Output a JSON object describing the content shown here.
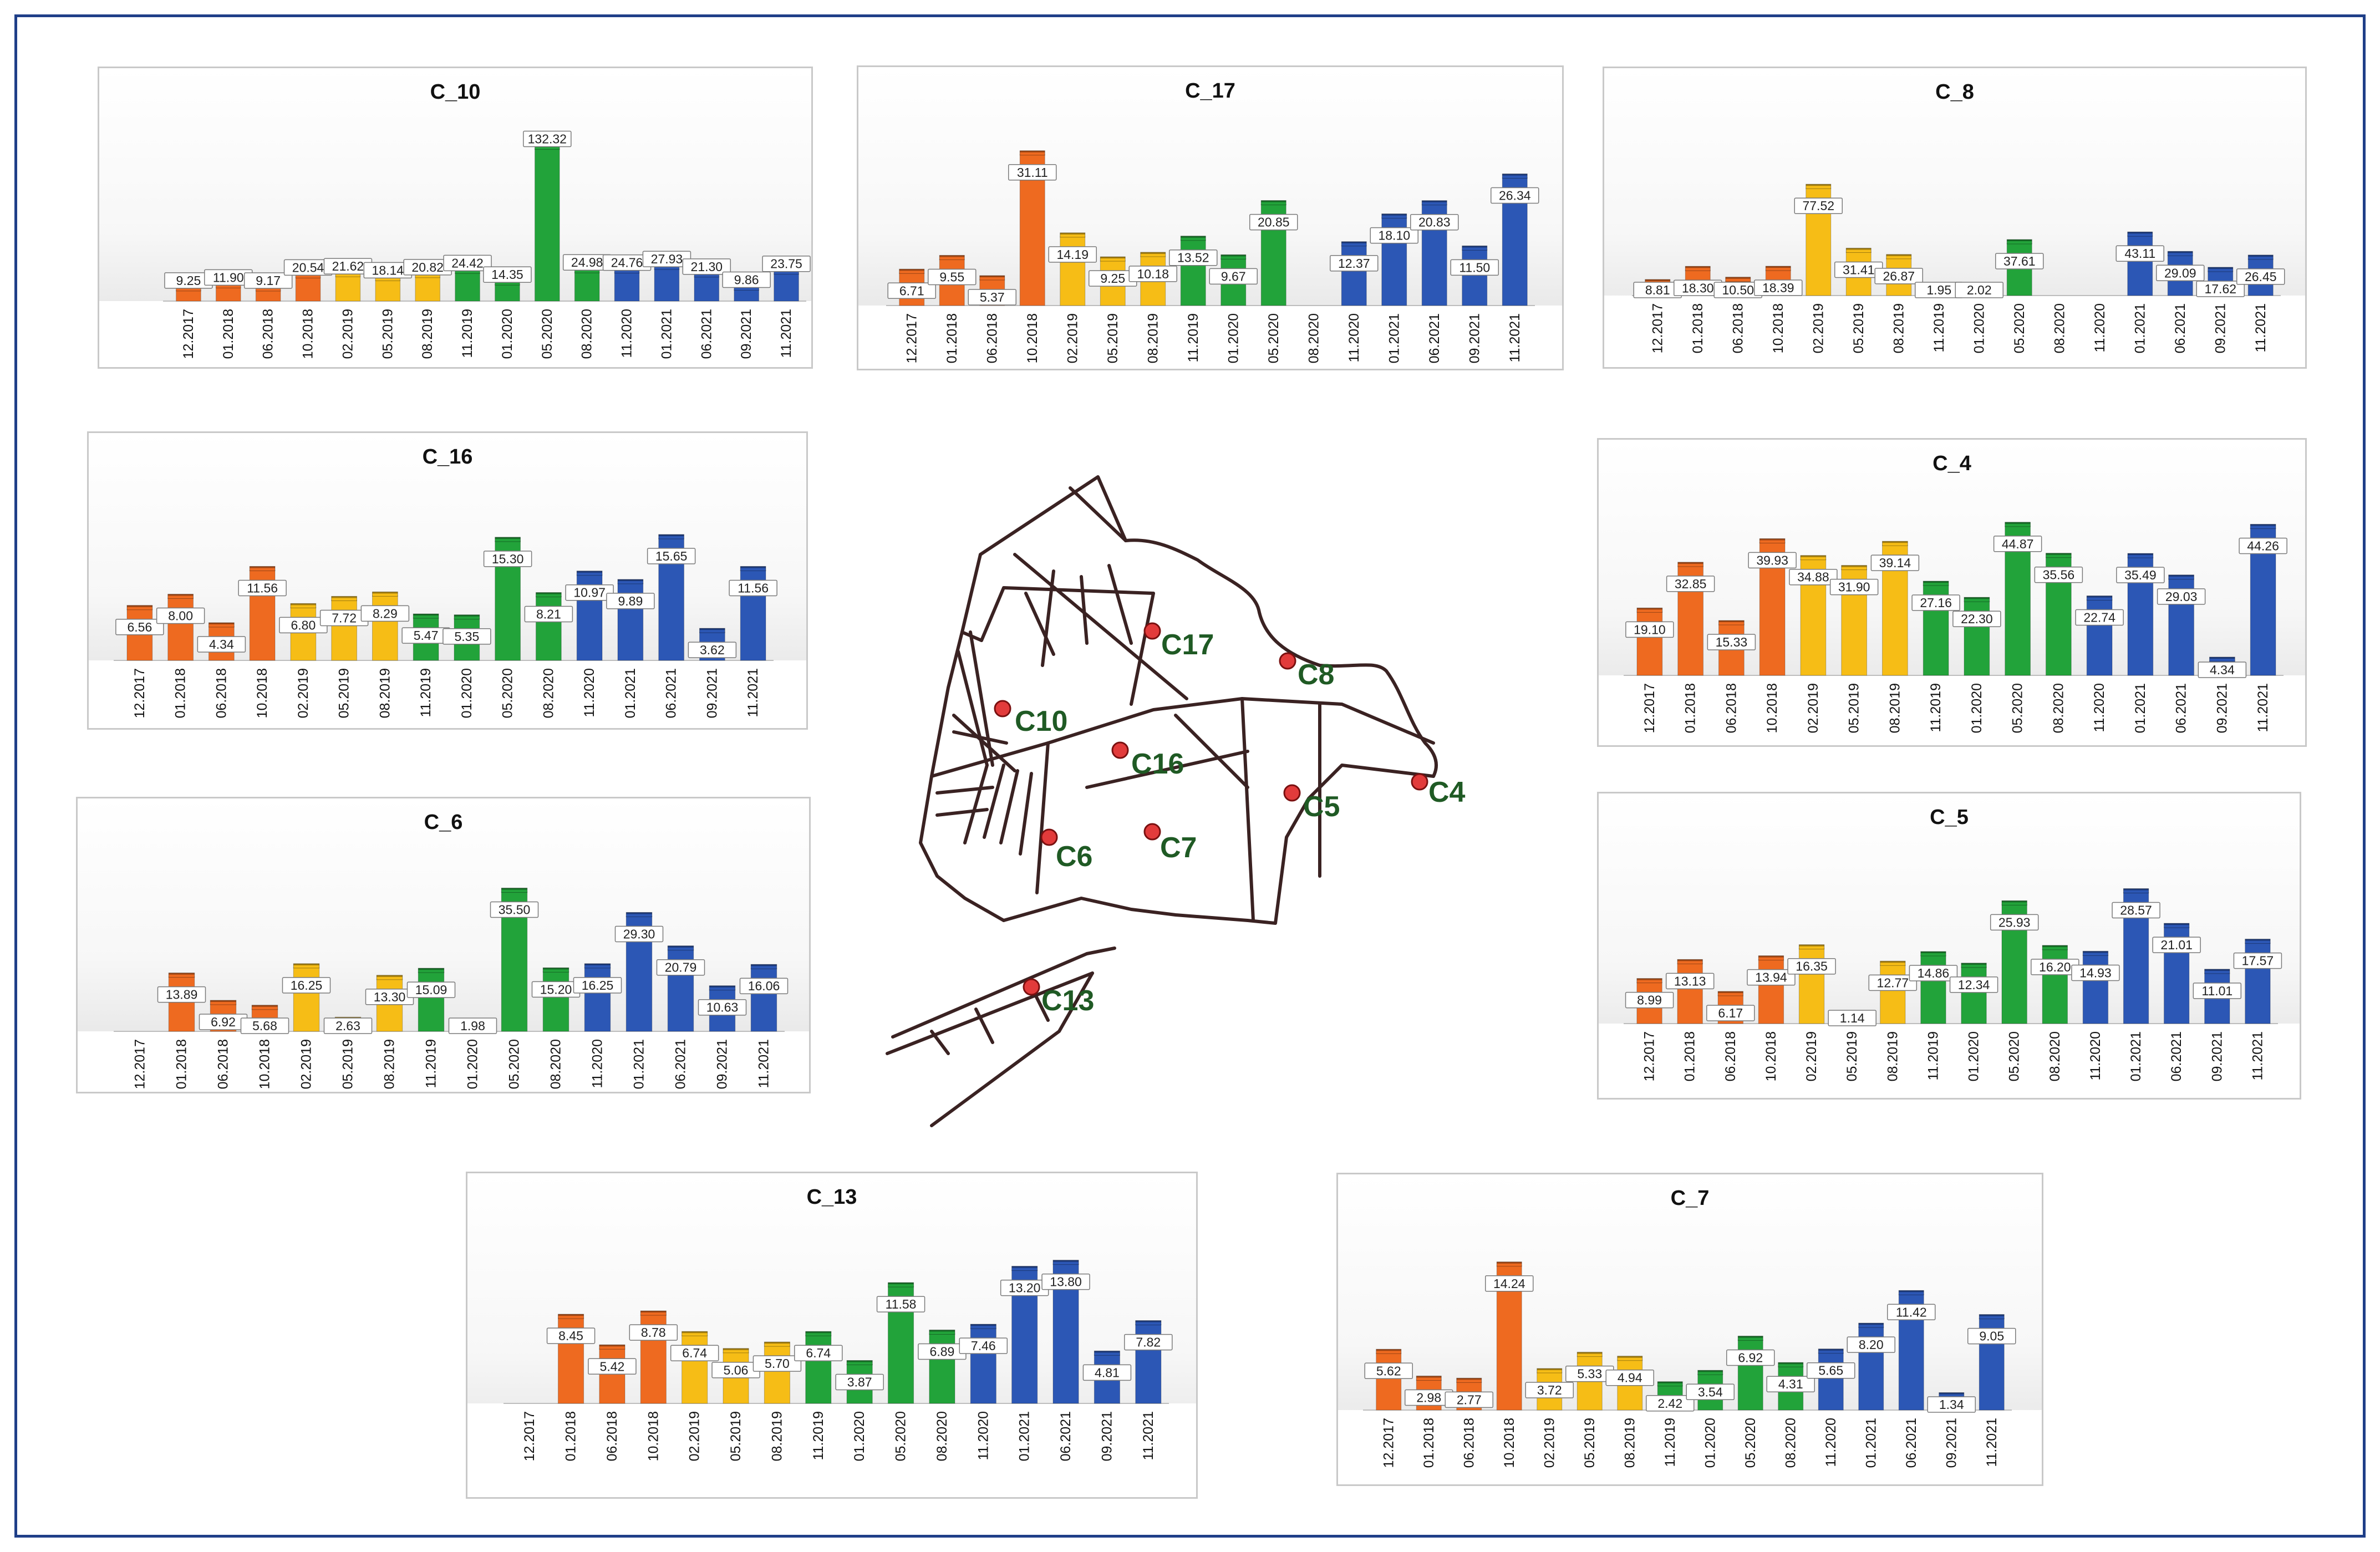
{
  "colors": {
    "orange": "#ee6a20",
    "yellow": "#f6bd16",
    "green": "#22a33a",
    "blue": "#2c57b5",
    "frame": "#1f3f88"
  },
  "map": {
    "stations": [
      {
        "label": "C17"
      },
      {
        "label": "C8"
      },
      {
        "label": "C10"
      },
      {
        "label": "C16"
      },
      {
        "label": "C5"
      },
      {
        "label": "C4"
      },
      {
        "label": "C6"
      },
      {
        "label": "C7"
      },
      {
        "label": "C13"
      }
    ]
  },
  "chart_data": [
    {
      "type": "bar",
      "title": "C_10",
      "ylim": [
        0,
        135
      ],
      "categories": [
        "12.2017",
        "01.2018",
        "06.2018",
        "10.2018",
        "02.2019",
        "05.2019",
        "08.2019",
        "11.2019",
        "01.2020",
        "05.2020",
        "08.2020",
        "11.2020",
        "01.2021",
        "06.2021",
        "09.2021",
        "11.2021"
      ],
      "values": [
        9.25,
        11.9,
        9.17,
        20.54,
        21.62,
        18.14,
        20.82,
        24.42,
        14.35,
        132.32,
        24.98,
        24.76,
        27.93,
        21.3,
        9.86,
        23.75
      ],
      "labels": [
        "9.25",
        "11.90",
        "9.17",
        "20.54",
        "21.62",
        "18.14",
        "20.82",
        "24.42",
        "14.35",
        "132.32",
        "24.98",
        "24.76",
        "27.93",
        "21.30",
        "9.86",
        "23.75"
      ],
      "colors": [
        "orange",
        "orange",
        "orange",
        "orange",
        "yellow",
        "yellow",
        "yellow",
        "green",
        "green",
        "green",
        "green",
        "blue",
        "blue",
        "blue",
        "blue",
        "blue"
      ]
    },
    {
      "type": "bar",
      "title": "C_17",
      "ylim": [
        0,
        32
      ],
      "categories": [
        "12.2017",
        "01.2018",
        "06.2018",
        "10.2018",
        "02.2019",
        "05.2019",
        "08.2019",
        "11.2019",
        "01.2020",
        "05.2020",
        "08.2020",
        "11.2020",
        "01.2021",
        "06.2021",
        "09.2021",
        "11.2021"
      ],
      "values": [
        6.71,
        9.55,
        5.37,
        31.11,
        14.19,
        9.25,
        10.18,
        13.52,
        9.67,
        20.85,
        null,
        12.37,
        18.1,
        20.83,
        11.5,
        26.34
      ],
      "labels": [
        "6.71",
        "9.55",
        "5.37",
        "31.11",
        "14.19",
        "9.25",
        "10.18",
        "13.52",
        "9.67",
        "20.85",
        "",
        "12.37",
        "18.10",
        "20.83",
        "11.50",
        "26.34"
      ],
      "colors": [
        "orange",
        "orange",
        "orange",
        "orange",
        "yellow",
        "yellow",
        "yellow",
        "green",
        "green",
        "green",
        "green",
        "blue",
        "blue",
        "blue",
        "blue",
        "blue"
      ]
    },
    {
      "type": "bar",
      "title": "C_8",
      "ylim": [
        0,
        78
      ],
      "categories": [
        "12.2017",
        "01.2018",
        "06.2018",
        "10.2018",
        "02.2019",
        "05.2019",
        "08.2019",
        "11.2019",
        "01.2020",
        "05.2020",
        "08.2020",
        "11.2020",
        "01.2021",
        "06.2021",
        "09.2021",
        "11.2021"
      ],
      "values": [
        8.81,
        18.3,
        10.5,
        18.39,
        77.52,
        31.41,
        26.87,
        1.95,
        2.02,
        37.61,
        null,
        null,
        43.11,
        29.09,
        17.62,
        26.45
      ],
      "labels": [
        "8.81",
        "18.30",
        "10.50",
        "18.39",
        "77.52",
        "31.41",
        "26.87",
        "1.95",
        "2.02",
        "37.61",
        "",
        "",
        "43.11",
        "29.09",
        "17.62",
        "26.45"
      ],
      "colors": [
        "orange",
        "orange",
        "orange",
        "orange",
        "yellow",
        "yellow",
        "yellow",
        "green",
        "green",
        "green",
        "green",
        "blue",
        "blue",
        "blue",
        "blue",
        "blue"
      ]
    },
    {
      "type": "bar",
      "title": "C_16",
      "ylim": [
        0,
        16
      ],
      "categories": [
        "12.2017",
        "01.2018",
        "06.2018",
        "10.2018",
        "02.2019",
        "05.2019",
        "08.2019",
        "11.2019",
        "01.2020",
        "05.2020",
        "08.2020",
        "11.2020",
        "01.2021",
        "06.2021",
        "09.2021",
        "11.2021"
      ],
      "values": [
        6.56,
        8.0,
        4.34,
        11.56,
        6.8,
        7.72,
        8.29,
        5.47,
        5.35,
        15.3,
        8.21,
        10.97,
        9.89,
        15.65,
        3.62,
        11.56
      ],
      "labels": [
        "6.56",
        "8.00",
        "4.34",
        "11.56",
        "6.80",
        "7.72",
        "8.29",
        "5.47",
        "5.35",
        "15.30",
        "8.21",
        "10.97",
        "9.89",
        "15.65",
        "3.62",
        "11.56"
      ],
      "colors": [
        "orange",
        "orange",
        "orange",
        "orange",
        "yellow",
        "yellow",
        "yellow",
        "green",
        "green",
        "green",
        "green",
        "blue",
        "blue",
        "blue",
        "blue",
        "blue"
      ]
    },
    {
      "type": "bar",
      "title": "C_4",
      "ylim": [
        0,
        45
      ],
      "categories": [
        "12.2017",
        "01.2018",
        "06.2018",
        "10.2018",
        "02.2019",
        "05.2019",
        "08.2019",
        "11.2019",
        "01.2020",
        "05.2020",
        "08.2020",
        "11.2020",
        "01.2021",
        "06.2021",
        "09.2021",
        "11.2021"
      ],
      "values": [
        19.1,
        32.85,
        15.33,
        39.93,
        34.88,
        31.9,
        39.14,
        27.16,
        22.3,
        44.87,
        35.56,
        22.74,
        35.49,
        29.03,
        4.34,
        44.26
      ],
      "labels": [
        "19.10",
        "32.85",
        "15.33",
        "39.93",
        "34.88",
        "31.90",
        "39.14",
        "27.16",
        "22.30",
        "44.87",
        "35.56",
        "22.74",
        "35.49",
        "29.03",
        "4.34",
        "44.26"
      ],
      "colors": [
        "orange",
        "orange",
        "orange",
        "orange",
        "yellow",
        "yellow",
        "yellow",
        "green",
        "green",
        "green",
        "green",
        "blue",
        "blue",
        "blue",
        "blue",
        "blue"
      ]
    },
    {
      "type": "bar",
      "title": "C_6",
      "ylim": [
        0,
        36
      ],
      "categories": [
        "12.2017",
        "01.2018",
        "06.2018",
        "10.2018",
        "02.2019",
        "05.2019",
        "08.2019",
        "11.2019",
        "01.2020",
        "05.2020",
        "08.2020",
        "11.2020",
        "01.2021",
        "06.2021",
        "09.2021",
        "11.2021"
      ],
      "values": [
        null,
        13.89,
        6.92,
        5.68,
        16.25,
        2.63,
        13.3,
        15.09,
        1.98,
        35.5,
        15.2,
        16.25,
        29.3,
        20.79,
        10.63,
        16.06
      ],
      "labels": [
        "",
        "13.89",
        "6.92",
        "5.68",
        "16.25",
        "2.63",
        "13.30",
        "15.09",
        "1.98",
        "35.50",
        "15.20",
        "16.25",
        "29.30",
        "20.79",
        "10.63",
        "16.06"
      ],
      "colors": [
        "orange",
        "orange",
        "orange",
        "orange",
        "yellow",
        "yellow",
        "yellow",
        "green",
        "green",
        "green",
        "green",
        "blue",
        "blue",
        "blue",
        "blue",
        "blue"
      ]
    },
    {
      "type": "bar",
      "title": "C_5",
      "ylim": [
        0,
        29
      ],
      "categories": [
        "12.2017",
        "01.2018",
        "06.2018",
        "10.2018",
        "02.2019",
        "05.2019",
        "08.2019",
        "11.2019",
        "01.2020",
        "05.2020",
        "08.2020",
        "11.2020",
        "01.2021",
        "06.2021",
        "09.2021",
        "11.2021"
      ],
      "values": [
        8.99,
        13.13,
        6.17,
        13.94,
        16.35,
        1.14,
        12.77,
        14.86,
        12.34,
        25.93,
        16.2,
        14.93,
        28.57,
        21.01,
        11.01,
        17.57
      ],
      "labels": [
        "8.99",
        "13.13",
        "6.17",
        "13.94",
        "16.35",
        "1.14",
        "12.77",
        "14.86",
        "12.34",
        "25.93",
        "16.20",
        "14.93",
        "28.57",
        "21.01",
        "11.01",
        "17.57"
      ],
      "colors": [
        "orange",
        "orange",
        "orange",
        "orange",
        "yellow",
        "yellow",
        "yellow",
        "green",
        "green",
        "green",
        "green",
        "blue",
        "blue",
        "blue",
        "blue",
        "blue"
      ]
    },
    {
      "type": "bar",
      "title": "C_13",
      "ylim": [
        0,
        14
      ],
      "categories": [
        "12.2017",
        "01.2018",
        "06.2018",
        "10.2018",
        "02.2019",
        "05.2019",
        "08.2019",
        "11.2019",
        "01.2020",
        "05.2020",
        "08.2020",
        "11.2020",
        "01.2021",
        "06.2021",
        "09.2021",
        "11.2021"
      ],
      "values": [
        null,
        8.45,
        5.42,
        8.78,
        6.74,
        5.06,
        5.7,
        6.74,
        3.87,
        11.58,
        6.89,
        7.46,
        13.2,
        13.8,
        4.81,
        7.82
      ],
      "labels": [
        "",
        "8.45",
        "5.42",
        "8.78",
        "6.74",
        "5.06",
        "5.70",
        "6.74",
        "3.87",
        "11.58",
        "6.89",
        "7.46",
        "13.20",
        "13.80",
        "4.81",
        "7.82"
      ],
      "colors": [
        "orange",
        "orange",
        "orange",
        "orange",
        "yellow",
        "yellow",
        "yellow",
        "green",
        "green",
        "green",
        "green",
        "blue",
        "blue",
        "blue",
        "blue",
        "blue"
      ]
    },
    {
      "type": "bar",
      "title": "C_7",
      "ylim": [
        0,
        14.5
      ],
      "categories": [
        "12.2017",
        "01.2018",
        "06.2018",
        "10.2018",
        "02.2019",
        "05.2019",
        "08.2019",
        "11.2019",
        "01.2020",
        "05.2020",
        "08.2020",
        "11.2020",
        "01.2021",
        "06.2021",
        "09.2021",
        "11.2021"
      ],
      "values": [
        5.62,
        2.98,
        2.77,
        14.24,
        3.72,
        5.33,
        4.94,
        2.42,
        3.54,
        6.92,
        4.31,
        5.65,
        8.2,
        11.42,
        1.34,
        9.05
      ],
      "labels": [
        "5.62",
        "2.98",
        "2.77",
        "14.24",
        "3.72",
        "5.33",
        "4.94",
        "2.42",
        "3.54",
        "6.92",
        "4.31",
        "5.65",
        "8.20",
        "11.42",
        "1.34",
        "9.05"
      ],
      "colors": [
        "orange",
        "orange",
        "orange",
        "orange",
        "yellow",
        "yellow",
        "yellow",
        "green",
        "green",
        "green",
        "green",
        "blue",
        "blue",
        "blue",
        "blue",
        "blue"
      ]
    }
  ]
}
